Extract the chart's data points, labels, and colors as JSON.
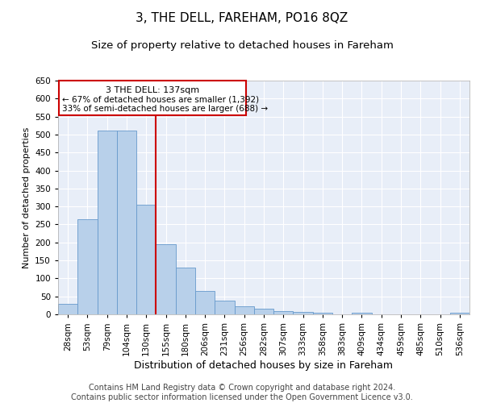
{
  "title": "3, THE DELL, FAREHAM, PO16 8QZ",
  "subtitle": "Size of property relative to detached houses in Fareham",
  "xlabel": "Distribution of detached houses by size in Fareham",
  "ylabel": "Number of detached properties",
  "footer_line1": "Contains HM Land Registry data © Crown copyright and database right 2024.",
  "footer_line2": "Contains public sector information licensed under the Open Government Licence v3.0.",
  "annotation_line1": "3 THE DELL: 137sqm",
  "annotation_line2": "← 67% of detached houses are smaller (1,392)",
  "annotation_line3": "33% of semi-detached houses are larger (688) →",
  "bar_labels": [
    "28sqm",
    "53sqm",
    "79sqm",
    "104sqm",
    "130sqm",
    "155sqm",
    "180sqm",
    "206sqm",
    "231sqm",
    "256sqm",
    "282sqm",
    "307sqm",
    "333sqm",
    "358sqm",
    "383sqm",
    "409sqm",
    "434sqm",
    "459sqm",
    "485sqm",
    "510sqm",
    "536sqm"
  ],
  "bar_values": [
    30,
    265,
    510,
    510,
    305,
    195,
    130,
    65,
    38,
    22,
    15,
    10,
    7,
    5,
    0,
    5,
    0,
    0,
    0,
    0,
    5
  ],
  "bar_color": "#b8d0ea",
  "bar_edgecolor": "#6699cc",
  "background_color": "#e8eef8",
  "grid_color": "#ffffff",
  "red_line_x": 4.5,
  "red_line_color": "#cc0000",
  "annotation_box_color": "#cc0000",
  "ylim": [
    0,
    650
  ],
  "yticks": [
    0,
    50,
    100,
    150,
    200,
    250,
    300,
    350,
    400,
    450,
    500,
    550,
    600,
    650
  ],
  "title_fontsize": 11,
  "subtitle_fontsize": 9.5,
  "ylabel_fontsize": 8,
  "xlabel_fontsize": 9,
  "tick_fontsize": 7.5,
  "footer_fontsize": 7,
  "annotation_fontsize": 8
}
